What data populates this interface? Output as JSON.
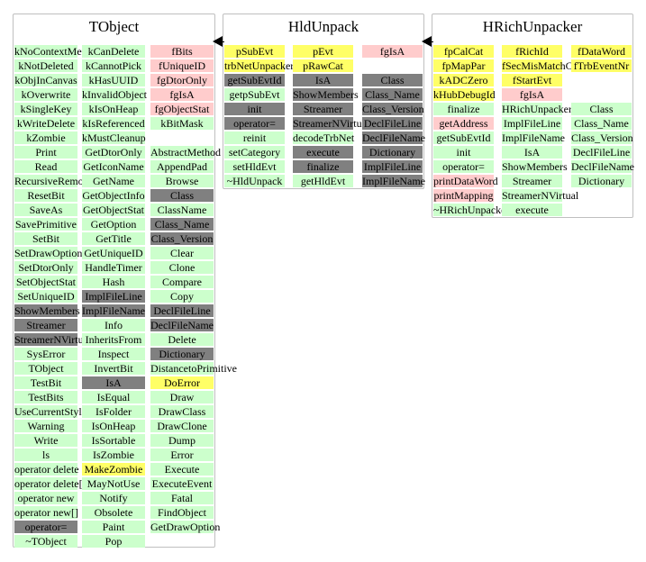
{
  "classes": [
    {
      "title": "TObject",
      "columns": [
        [
          {
            "t": "kNoContextMenu",
            "c": "g"
          },
          {
            "t": "kNotDeleted",
            "c": "g"
          },
          {
            "t": "kObjInCanvas",
            "c": "g"
          },
          {
            "t": "kOverwrite",
            "c": "g"
          },
          {
            "t": "kSingleKey",
            "c": "g"
          },
          {
            "t": "kWriteDelete",
            "c": "g"
          },
          {
            "t": "kZombie",
            "c": "g"
          },
          {
            "t": "Print",
            "c": "g"
          },
          {
            "t": "Read",
            "c": "g"
          },
          {
            "t": "RecursiveRemove",
            "c": "g"
          },
          {
            "t": "ResetBit",
            "c": "g"
          },
          {
            "t": "SaveAs",
            "c": "g"
          },
          {
            "t": "SavePrimitive",
            "c": "g"
          },
          {
            "t": "SetBit",
            "c": "g"
          },
          {
            "t": "SetDrawOption",
            "c": "g"
          },
          {
            "t": "SetDtorOnly",
            "c": "g"
          },
          {
            "t": "SetObjectStat",
            "c": "g"
          },
          {
            "t": "SetUniqueID",
            "c": "g"
          },
          {
            "t": "ShowMembers",
            "c": "d"
          },
          {
            "t": "Streamer",
            "c": "d"
          },
          {
            "t": "StreamerNVirtual",
            "c": "d"
          },
          {
            "t": "SysError",
            "c": "g"
          },
          {
            "t": "TObject",
            "c": "g"
          },
          {
            "t": "TestBit",
            "c": "g"
          },
          {
            "t": "TestBits",
            "c": "g"
          },
          {
            "t": "UseCurrentStyle",
            "c": "g"
          },
          {
            "t": "Warning",
            "c": "g"
          },
          {
            "t": "Write",
            "c": "g"
          },
          {
            "t": "ls",
            "c": "g"
          },
          {
            "t": "operator delete",
            "c": "g"
          },
          {
            "t": "operator delete[]",
            "c": "g"
          },
          {
            "t": "operator new",
            "c": "g"
          },
          {
            "t": "operator new[]",
            "c": "g"
          },
          {
            "t": "operator=",
            "c": "d"
          },
          {
            "t": "~TObject",
            "c": "g"
          }
        ],
        [
          {
            "t": "kCanDelete",
            "c": "g"
          },
          {
            "t": "kCannotPick",
            "c": "g"
          },
          {
            "t": "kHasUUID",
            "c": "g"
          },
          {
            "t": "kInvalidObject",
            "c": "g"
          },
          {
            "t": "kIsOnHeap",
            "c": "g"
          },
          {
            "t": "kIsReferenced",
            "c": "g"
          },
          {
            "t": "kMustCleanup",
            "c": "g"
          },
          {
            "t": "GetDtorOnly",
            "c": "g"
          },
          {
            "t": "GetIconName",
            "c": "g"
          },
          {
            "t": "GetName",
            "c": "g"
          },
          {
            "t": "GetObjectInfo",
            "c": "g"
          },
          {
            "t": "GetObjectStat",
            "c": "g"
          },
          {
            "t": "GetOption",
            "c": "g"
          },
          {
            "t": "GetTitle",
            "c": "g"
          },
          {
            "t": "GetUniqueID",
            "c": "g"
          },
          {
            "t": "HandleTimer",
            "c": "g"
          },
          {
            "t": "Hash",
            "c": "g"
          },
          {
            "t": "ImplFileLine",
            "c": "d"
          },
          {
            "t": "ImplFileName",
            "c": "d"
          },
          {
            "t": "Info",
            "c": "g"
          },
          {
            "t": "InheritsFrom",
            "c": "g"
          },
          {
            "t": "Inspect",
            "c": "g"
          },
          {
            "t": "InvertBit",
            "c": "g"
          },
          {
            "t": "IsA",
            "c": "d"
          },
          {
            "t": "IsEqual",
            "c": "g"
          },
          {
            "t": "IsFolder",
            "c": "g"
          },
          {
            "t": "IsOnHeap",
            "c": "g"
          },
          {
            "t": "IsSortable",
            "c": "g"
          },
          {
            "t": "IsZombie",
            "c": "g"
          },
          {
            "t": "MakeZombie",
            "c": "y"
          },
          {
            "t": "MayNotUse",
            "c": "g"
          },
          {
            "t": "Notify",
            "c": "g"
          },
          {
            "t": "Obsolete",
            "c": "g"
          },
          {
            "t": "Paint",
            "c": "g"
          },
          {
            "t": "Pop",
            "c": "g"
          }
        ],
        [
          {
            "t": "fBits",
            "c": "p"
          },
          {
            "t": "fUniqueID",
            "c": "p"
          },
          {
            "t": "fgDtorOnly",
            "c": "p"
          },
          {
            "t": "fgIsA",
            "c": "p"
          },
          {
            "t": "fgObjectStat",
            "c": "p"
          },
          {
            "t": "kBitMask",
            "c": "g"
          },
          {
            "t": "",
            "c": "w"
          },
          {
            "t": "AbstractMethod",
            "c": "g"
          },
          {
            "t": "AppendPad",
            "c": "g"
          },
          {
            "t": "Browse",
            "c": "g"
          },
          {
            "t": "Class",
            "c": "d"
          },
          {
            "t": "ClassName",
            "c": "g"
          },
          {
            "t": "Class_Name",
            "c": "d"
          },
          {
            "t": "Class_Version",
            "c": "d"
          },
          {
            "t": "Clear",
            "c": "g"
          },
          {
            "t": "Clone",
            "c": "g"
          },
          {
            "t": "Compare",
            "c": "g"
          },
          {
            "t": "Copy",
            "c": "g"
          },
          {
            "t": "DeclFileLine",
            "c": "d"
          },
          {
            "t": "DeclFileName",
            "c": "d"
          },
          {
            "t": "Delete",
            "c": "g"
          },
          {
            "t": "Dictionary",
            "c": "d"
          },
          {
            "t": "DistancetoPrimitive",
            "c": "g"
          },
          {
            "t": "DoError",
            "c": "y"
          },
          {
            "t": "Draw",
            "c": "g"
          },
          {
            "t": "DrawClass",
            "c": "g"
          },
          {
            "t": "DrawClone",
            "c": "g"
          },
          {
            "t": "Dump",
            "c": "g"
          },
          {
            "t": "Error",
            "c": "g"
          },
          {
            "t": "Execute",
            "c": "g"
          },
          {
            "t": "ExecuteEvent",
            "c": "g"
          },
          {
            "t": "Fatal",
            "c": "g"
          },
          {
            "t": "FindObject",
            "c": "g"
          },
          {
            "t": "GetDrawOption",
            "c": "g"
          }
        ]
      ]
    },
    {
      "title": "HldUnpack",
      "columns": [
        [
          {
            "t": "pSubEvt",
            "c": "y"
          },
          {
            "t": "trbNetUnpacker",
            "c": "y"
          },
          {
            "t": "getSubEvtId",
            "c": "d"
          },
          {
            "t": "getpSubEvt",
            "c": "g"
          },
          {
            "t": "init",
            "c": "d"
          },
          {
            "t": "operator=",
            "c": "d"
          },
          {
            "t": "reinit",
            "c": "g"
          },
          {
            "t": "setCategory",
            "c": "g"
          },
          {
            "t": "setHldEvt",
            "c": "g"
          },
          {
            "t": "~HldUnpack",
            "c": "g"
          }
        ],
        [
          {
            "t": "pEvt",
            "c": "y"
          },
          {
            "t": "pRawCat",
            "c": "y"
          },
          {
            "t": "IsA",
            "c": "d"
          },
          {
            "t": "ShowMembers",
            "c": "d"
          },
          {
            "t": "Streamer",
            "c": "d"
          },
          {
            "t": "StreamerNVirtual",
            "c": "d"
          },
          {
            "t": "decodeTrbNet",
            "c": "g"
          },
          {
            "t": "execute",
            "c": "d"
          },
          {
            "t": "finalize",
            "c": "d"
          },
          {
            "t": "getHldEvt",
            "c": "g"
          }
        ],
        [
          {
            "t": "fgIsA",
            "c": "p"
          },
          {
            "t": "",
            "c": "w"
          },
          {
            "t": "Class",
            "c": "d"
          },
          {
            "t": "Class_Name",
            "c": "d"
          },
          {
            "t": "Class_Version",
            "c": "d"
          },
          {
            "t": "DeclFileLine",
            "c": "d"
          },
          {
            "t": "DeclFileName",
            "c": "d"
          },
          {
            "t": "Dictionary",
            "c": "d"
          },
          {
            "t": "ImplFileLine",
            "c": "d"
          },
          {
            "t": "ImplFileName",
            "c": "d"
          }
        ]
      ]
    },
    {
      "title": "HRichUnpacker",
      "columns": [
        [
          {
            "t": "fpCalCat",
            "c": "y"
          },
          {
            "t": "fpMapPar",
            "c": "y"
          },
          {
            "t": "kADCZero",
            "c": "y"
          },
          {
            "t": "kHubDebugId",
            "c": "y"
          },
          {
            "t": "finalize",
            "c": "g"
          },
          {
            "t": "getAddress",
            "c": "p"
          },
          {
            "t": "getSubEvtId",
            "c": "g"
          },
          {
            "t": "init",
            "c": "g"
          },
          {
            "t": "operator=",
            "c": "g"
          },
          {
            "t": "printDataWord",
            "c": "p"
          },
          {
            "t": "printMapping",
            "c": "p"
          },
          {
            "t": "~HRichUnpacker",
            "c": "g"
          }
        ],
        [
          {
            "t": "fRichId",
            "c": "y"
          },
          {
            "t": "fSecMisMatchCntr",
            "c": "y"
          },
          {
            "t": "fStartEvt",
            "c": "y"
          },
          {
            "t": "fgIsA",
            "c": "p"
          },
          {
            "t": "HRichUnpacker",
            "c": "g"
          },
          {
            "t": "ImplFileLine",
            "c": "g"
          },
          {
            "t": "ImplFileName",
            "c": "g"
          },
          {
            "t": "IsA",
            "c": "g"
          },
          {
            "t": "ShowMembers",
            "c": "g"
          },
          {
            "t": "Streamer",
            "c": "g"
          },
          {
            "t": "StreamerNVirtual",
            "c": "g"
          },
          {
            "t": "execute",
            "c": "g"
          }
        ],
        [
          {
            "t": "fDataWord",
            "c": "y"
          },
          {
            "t": "fTrbEventNr",
            "c": "y"
          },
          {
            "t": "",
            "c": "w"
          },
          {
            "t": "",
            "c": "w"
          },
          {
            "t": "Class",
            "c": "g"
          },
          {
            "t": "Class_Name",
            "c": "g"
          },
          {
            "t": "Class_Version",
            "c": "g"
          },
          {
            "t": "DeclFileLine",
            "c": "g"
          },
          {
            "t": "DeclFileName",
            "c": "g"
          },
          {
            "t": "Dictionary",
            "c": "g"
          }
        ]
      ]
    }
  ]
}
